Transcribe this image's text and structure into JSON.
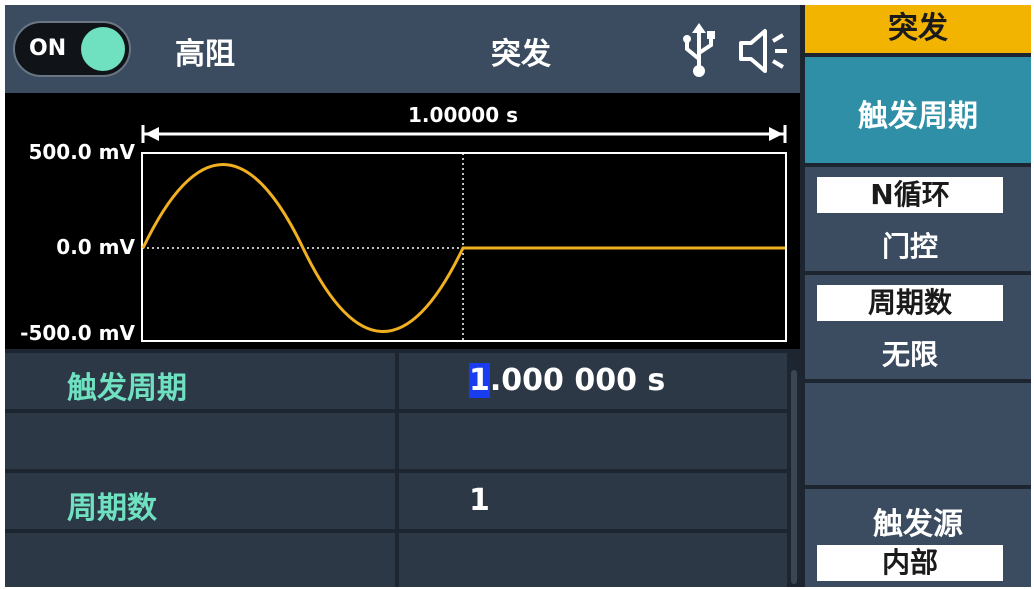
{
  "status_bar": {
    "output_toggle": "ON",
    "load": "高阻",
    "mode": "突发",
    "usb_icon": "usb-icon",
    "speaker_icon": "speaker-icon"
  },
  "waveform": {
    "period_label": "1.00000 s",
    "y_top": "500.0 mV",
    "y_mid": "0.0 mV",
    "y_bottom": "-500.0 mV",
    "trace_color": "#f0b020"
  },
  "params": [
    {
      "label": "触发周期",
      "value_cursor": "1",
      "value_rest": ".000 000 s"
    },
    {
      "label": "",
      "value_cursor": "",
      "value_rest": ""
    },
    {
      "label": "周期数",
      "value_cursor": "",
      "value_rest": "1"
    },
    {
      "label": "",
      "value_cursor": "",
      "value_rest": ""
    }
  ],
  "menu": {
    "header": "突发",
    "items": [
      {
        "title": "触发周期"
      },
      {
        "selected": "N循环",
        "other": "门控"
      },
      {
        "selected": "周期数",
        "other": "无限"
      },
      {
        "title": ""
      },
      {
        "title": "触发源",
        "selected": "内部"
      }
    ]
  },
  "colors": {
    "accent": "#6fe0c0",
    "menu_header": "#f2b400",
    "menu_active": "#2e8fa6",
    "panel": "#3c4c60"
  }
}
